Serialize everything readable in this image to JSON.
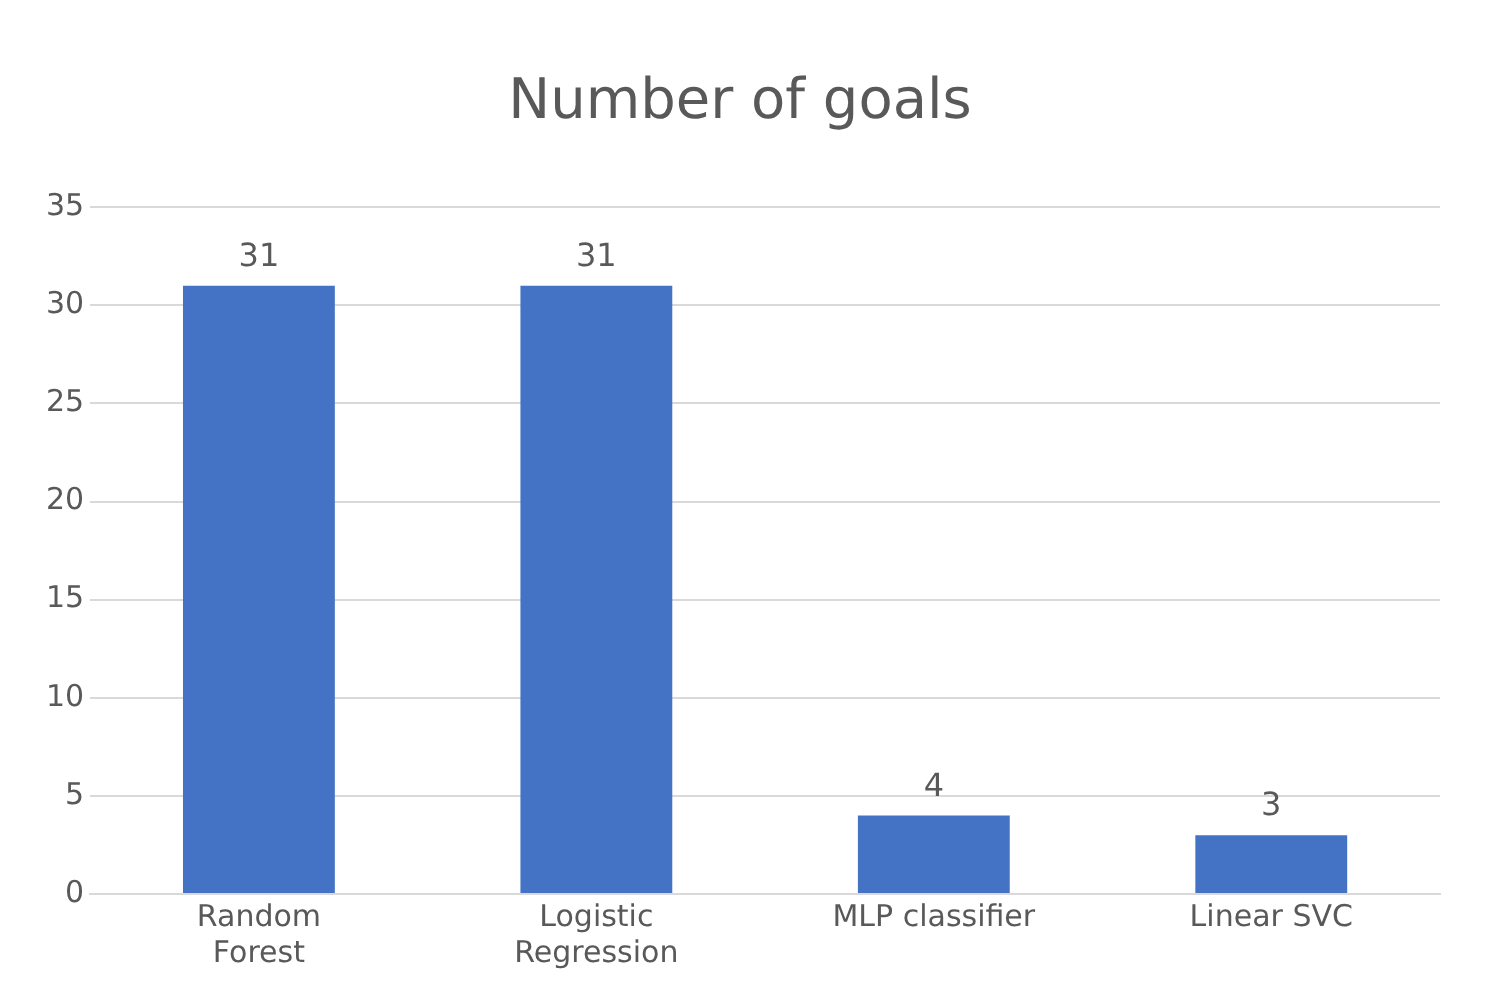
{
  "chart_data": {
    "type": "bar",
    "title": "Number of goals",
    "categories": [
      "Random Forest",
      "Logistic Regression",
      "MLP classifier",
      "Linear SVC"
    ],
    "values": [
      31,
      31,
      4,
      3
    ],
    "color": "#4472c4",
    "ylim": [
      0,
      35
    ],
    "yticks": [
      0,
      5,
      10,
      15,
      20,
      25,
      30,
      35
    ],
    "grid": "y",
    "legend": false,
    "data_labels": true
  }
}
